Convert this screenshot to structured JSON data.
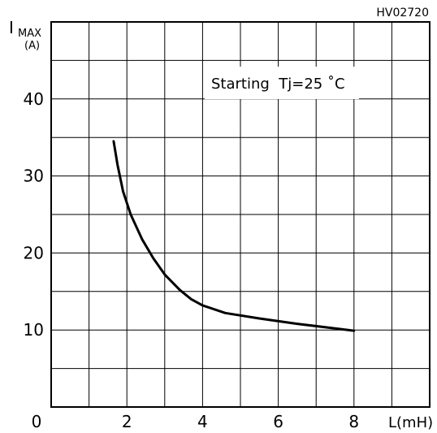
{
  "chart_data": {
    "type": "line",
    "figure_id": "HV02720",
    "ylabel_main": "I",
    "ylabel_sub": "MAX",
    "ylabel_unit": "(A)",
    "xlabel": "L(mH)",
    "annotation": "Starting  Tj=25 ˚C",
    "xlim": [
      0,
      10
    ],
    "ylim": [
      0,
      50
    ],
    "x_ticks": [
      {
        "value": 0,
        "label": "0"
      },
      {
        "value": 2,
        "label": "2"
      },
      {
        "value": 4,
        "label": "4"
      },
      {
        "value": 6,
        "label": "6"
      },
      {
        "value": 8,
        "label": "8"
      }
    ],
    "y_ticks": [
      {
        "value": 10,
        "label": "10"
      },
      {
        "value": 20,
        "label": "20"
      },
      {
        "value": 30,
        "label": "30"
      },
      {
        "value": 40,
        "label": "40"
      }
    ],
    "grid": true,
    "series": [
      {
        "color": "#000000",
        "points": [
          [
            1.65,
            34.5
          ],
          [
            1.75,
            31.5
          ],
          [
            1.9,
            28.0
          ],
          [
            2.1,
            25.0
          ],
          [
            2.4,
            21.8
          ],
          [
            2.7,
            19.3
          ],
          [
            3.0,
            17.2
          ],
          [
            3.4,
            15.2
          ],
          [
            3.7,
            14.0
          ],
          [
            4.0,
            13.2
          ],
          [
            4.6,
            12.2
          ],
          [
            5.5,
            11.5
          ],
          [
            6.5,
            10.8
          ],
          [
            7.5,
            10.2
          ],
          [
            8.0,
            9.9
          ]
        ]
      }
    ]
  }
}
